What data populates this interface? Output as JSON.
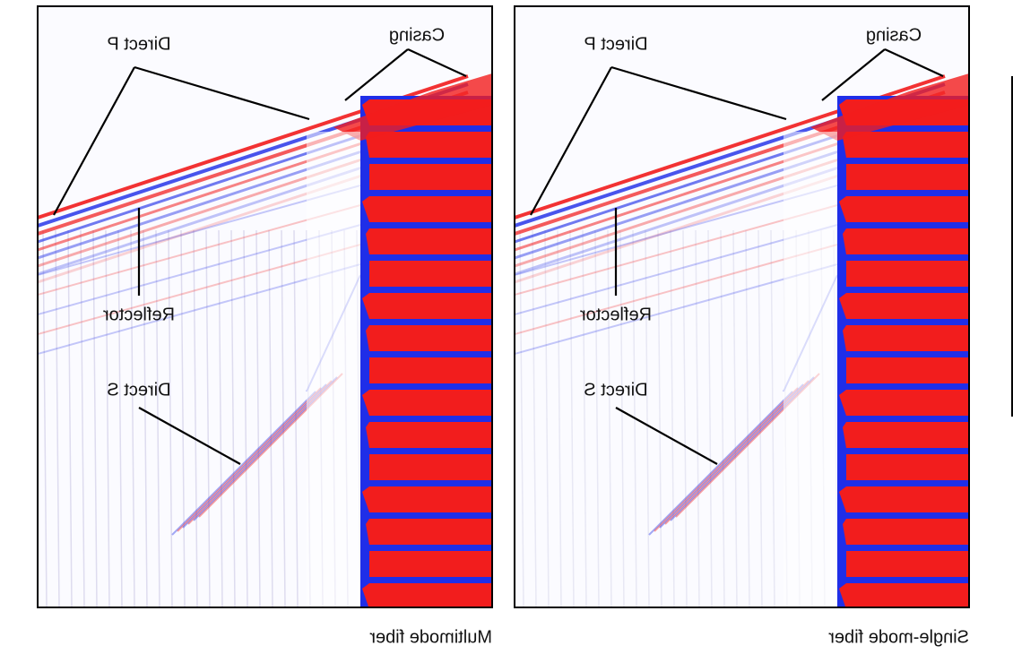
{
  "panels": [
    {
      "caption": "Multimode fiber",
      "annotations": [
        "Direct P",
        "Casing",
        "Reflector",
        "Direct S"
      ]
    },
    {
      "caption": "Single-mode fiber",
      "annotations": [
        "Direct P",
        "Casing",
        "Reflector",
        "Direct S"
      ]
    }
  ]
}
